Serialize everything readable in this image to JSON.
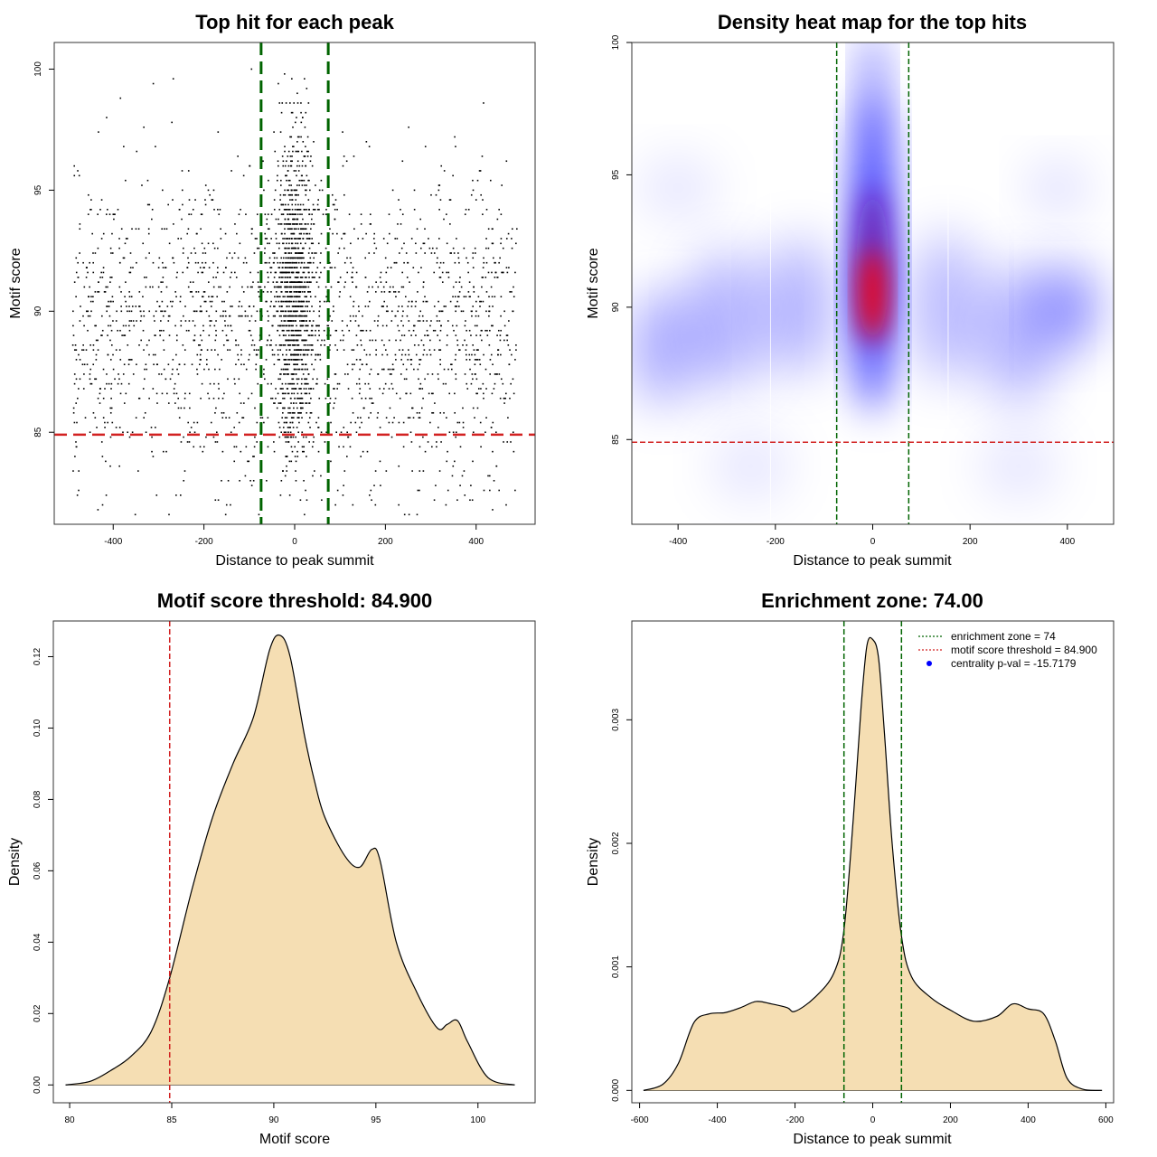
{
  "colors": {
    "points": "#000000",
    "enrichment_line": "#006400",
    "threshold_line": "#D22222",
    "fill": "#F5DEB3",
    "heat_low": "#FFFFFF",
    "heat_mid": "#0000FF",
    "heat_high": "#FF0000",
    "legend_dot": "#0000FF"
  },
  "chart_data": [
    {
      "type": "scatter",
      "title": "Top hit for each peak",
      "xlabel": "Distance to peak summit",
      "ylabel": "Motif score",
      "xlim": [
        -530,
        530
      ],
      "ylim": [
        81.2,
        101.1
      ],
      "xticks": [
        "-400",
        "-200",
        "0",
        "200",
        "400"
      ],
      "yticks": [
        "85",
        "90",
        "95",
        "100"
      ],
      "points": {
        "count": 3200,
        "x_range": [
          -490,
          490
        ],
        "y_range": [
          81.5,
          100
        ],
        "center_cluster_x": [
          -20,
          20
        ]
      },
      "vlines": [
        -74,
        74
      ],
      "hline": 84.9
    },
    {
      "type": "heatmap",
      "title": "Density heat map for the top hits",
      "xlabel": "Distance to peak summit",
      "ylabel": "Motif score",
      "xlim": [
        -495,
        495
      ],
      "ylim": [
        81.8,
        100
      ],
      "xticks": [
        "-400",
        "-200",
        "0",
        "200",
        "400"
      ],
      "yticks": [
        "85",
        "90",
        "95",
        "100"
      ],
      "hotspot": {
        "x": 0,
        "y": 90.5
      },
      "vlines": [
        -74,
        74
      ],
      "hline": 84.9
    },
    {
      "type": "area",
      "title": "Motif score threshold: 84.900",
      "xlabel": "Motif score",
      "ylabel": "Density",
      "xlim": [
        79.2,
        102.8
      ],
      "ylim": [
        -0.005,
        0.13
      ],
      "xticks": [
        "80",
        "85",
        "90",
        "95",
        "100"
      ],
      "yticks": [
        "0.00",
        "0.02",
        "0.04",
        "0.06",
        "0.08",
        "0.10",
        "0.12"
      ],
      "x": [
        79.8,
        81,
        82,
        83,
        84,
        84.9,
        86,
        87,
        88,
        89,
        89.8,
        90.3,
        90.8,
        91.5,
        92,
        92.5,
        93.5,
        94.2,
        94.8,
        95.2,
        96,
        97,
        98,
        98.5,
        99,
        99.5,
        100.5,
        101.8
      ],
      "y": [
        0,
        0.001,
        0.004,
        0.008,
        0.015,
        0.03,
        0.055,
        0.075,
        0.09,
        0.103,
        0.122,
        0.126,
        0.12,
        0.098,
        0.085,
        0.075,
        0.064,
        0.061,
        0.066,
        0.063,
        0.04,
        0.026,
        0.016,
        0.017,
        0.018,
        0.012,
        0.002,
        0
      ],
      "vline": 84.9
    },
    {
      "type": "area",
      "title": "Enrichment zone: 74.00",
      "xlabel": "Distance to peak summit",
      "ylabel": "Density",
      "xlim": [
        -620,
        620
      ],
      "ylim": [
        -0.0001,
        0.0038
      ],
      "xticks": [
        "-600",
        "-400",
        "-200",
        "0",
        "200",
        "400",
        "600"
      ],
      "yticks": [
        "0.000",
        "0.001",
        "0.002",
        "0.003"
      ],
      "x": [
        -590,
        -540,
        -500,
        -460,
        -420,
        -380,
        -340,
        -300,
        -260,
        -220,
        -200,
        -150,
        -100,
        -74,
        -50,
        -30,
        -15,
        0,
        15,
        30,
        50,
        74,
        100,
        150,
        200,
        260,
        320,
        360,
        400,
        440,
        470,
        500,
        540,
        590
      ],
      "y": [
        0,
        5e-05,
        0.00022,
        0.00055,
        0.00062,
        0.00063,
        0.00067,
        0.00072,
        0.0007,
        0.00067,
        0.00064,
        0.00075,
        0.00095,
        0.0013,
        0.0022,
        0.0031,
        0.0036,
        0.00365,
        0.0035,
        0.0029,
        0.002,
        0.00125,
        0.00092,
        0.00075,
        0.00065,
        0.00056,
        0.0006,
        0.0007,
        0.00066,
        0.00062,
        0.0004,
        0.0001,
        1e-05,
        0
      ],
      "vlines": [
        -74,
        74
      ],
      "legend": [
        {
          "label": "enrichment zone = 74",
          "style": "dotted",
          "color": "#006400"
        },
        {
          "label": "motif score threshold = 84.900",
          "style": "dotted",
          "color": "#D22222"
        },
        {
          "label": "centrality p-val = -15.7179",
          "style": "dot",
          "color": "#0000FF"
        }
      ],
      "legend_position": "top-right"
    }
  ]
}
